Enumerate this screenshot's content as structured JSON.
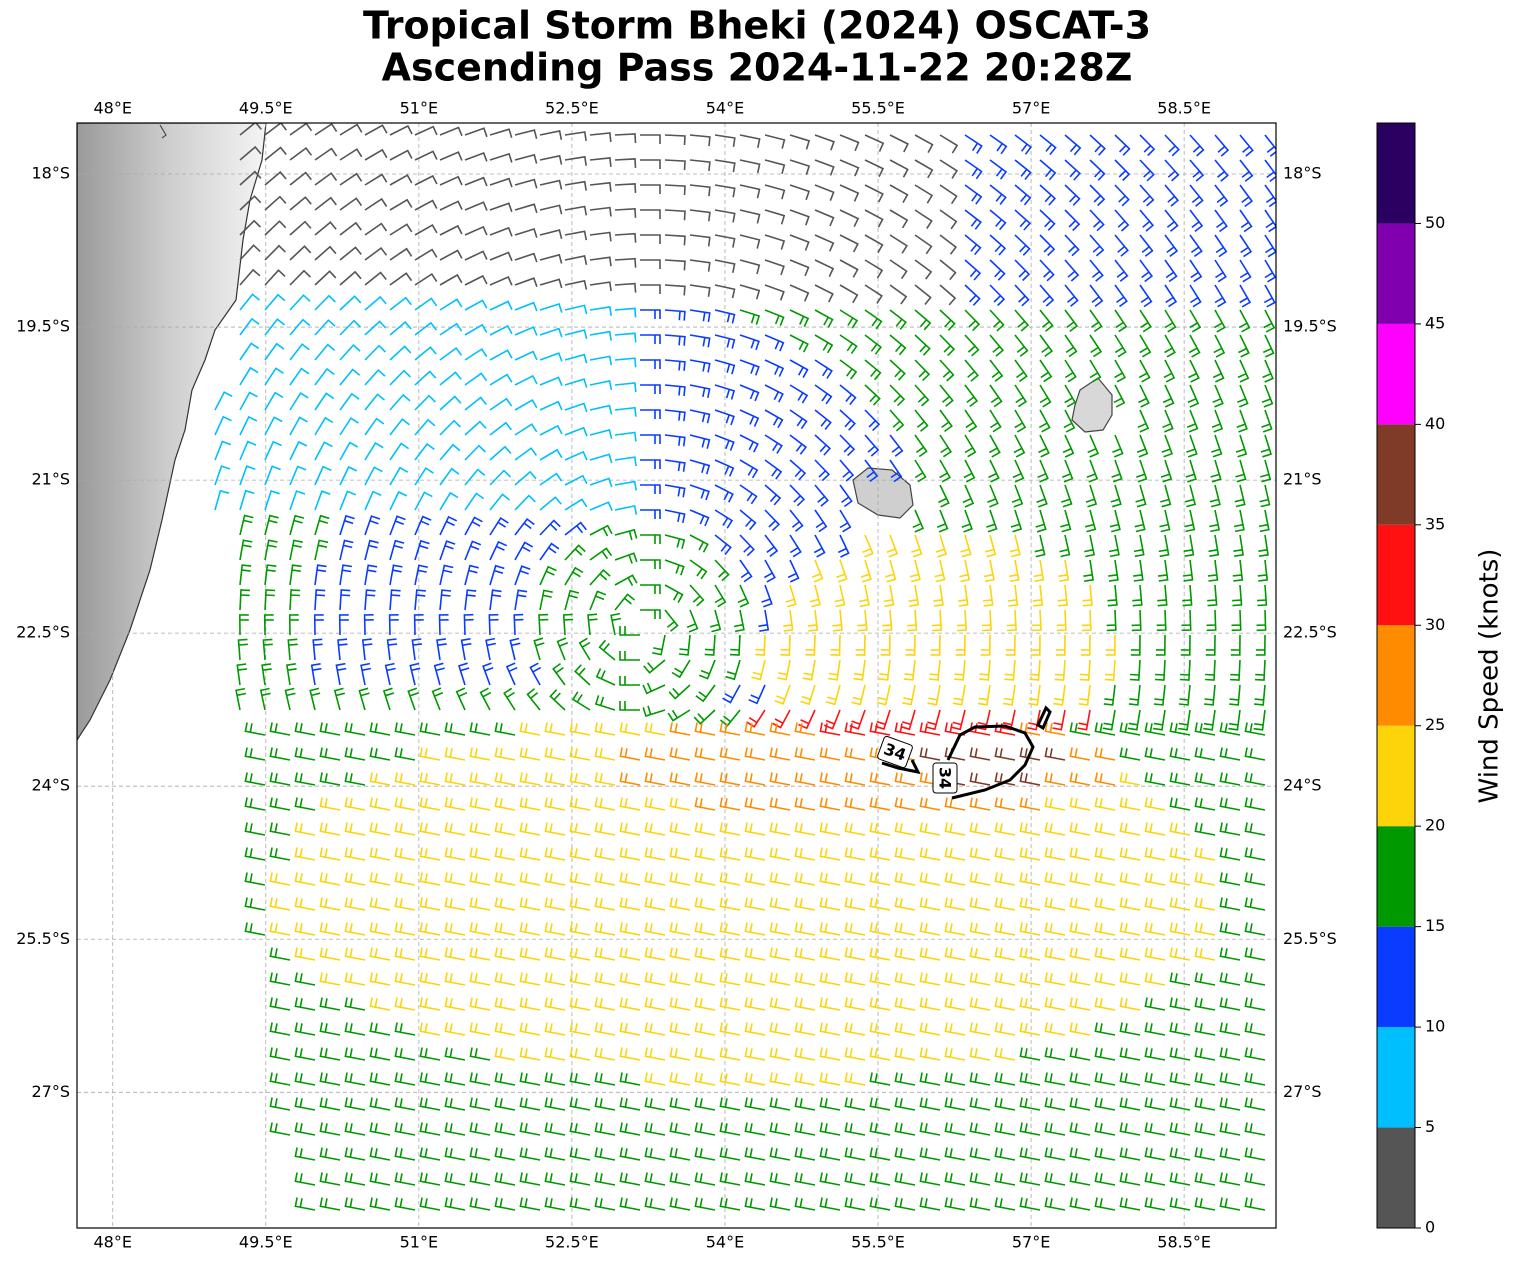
{
  "chart_data": {
    "type": "map",
    "title_lines": [
      "Tropical Storm Bheki (2024) OSCAT-3",
      "Ascending Pass 2024-11-22 20:28Z"
    ],
    "xlim": [
      47.65,
      59.4
    ],
    "ylim": [
      -28.33,
      -17.5
    ],
    "xticks": [
      {
        "value": 48,
        "label": "48°E"
      },
      {
        "value": 49.5,
        "label": "49.5°E"
      },
      {
        "value": 51,
        "label": "51°E"
      },
      {
        "value": 52.5,
        "label": "52.5°E"
      },
      {
        "value": 54,
        "label": "54°E"
      },
      {
        "value": 55.5,
        "label": "55.5°E"
      },
      {
        "value": 57,
        "label": "57°E"
      },
      {
        "value": 58.5,
        "label": "58.5°E"
      }
    ],
    "yticks": [
      {
        "value": -18,
        "label": "18°S"
      },
      {
        "value": -19.5,
        "label": "19.5°S"
      },
      {
        "value": -21,
        "label": "21°S"
      },
      {
        "value": -22.5,
        "label": "22.5°S"
      },
      {
        "value": -24,
        "label": "24°S"
      },
      {
        "value": -25.5,
        "label": "25.5°S"
      },
      {
        "value": -27,
        "label": "27°S"
      }
    ],
    "grid": true,
    "colorbar": {
      "label": "Wind Speed (knots)",
      "bounds": [
        0,
        5,
        10,
        15,
        20,
        25,
        30,
        35,
        40,
        45,
        50,
        55
      ],
      "ticks": [
        0,
        5,
        10,
        15,
        20,
        25,
        30,
        35,
        40,
        45,
        50
      ],
      "colors": [
        "#555555",
        "#00bfff",
        "#0a3cff",
        "#009900",
        "#fdd30a",
        "#ff8c00",
        "#ff1111",
        "#7f3b28",
        "#ff00ff",
        "#8000b0",
        "#2a0060"
      ]
    },
    "contour_labels": [
      34,
      34
    ]
  }
}
